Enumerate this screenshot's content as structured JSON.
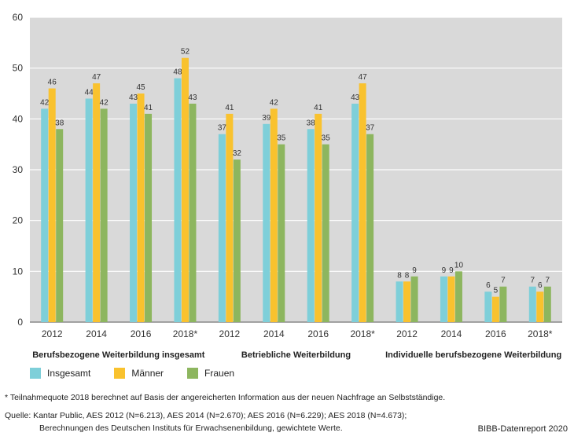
{
  "chart_data": {
    "type": "bar",
    "title": "",
    "xlabel": "",
    "ylabel": "",
    "ylim": [
      0,
      60
    ],
    "yticks": [
      0,
      10,
      20,
      30,
      40,
      50,
      60
    ],
    "grid": true,
    "legend_position": "bottom-left",
    "colors": {
      "plot_bg": "#d9d9d9",
      "Insgesamt": "#7ecfd9",
      "Männer": "#f9c22e",
      "Frauen": "#8db65f"
    },
    "groups": [
      {
        "name": "Berufsbezogene Weiterbildung insgesamt",
        "categories": [
          "2012",
          "2014",
          "2016",
          "2018*"
        ],
        "series": [
          {
            "name": "Insgesamt",
            "values": [
              42,
              44,
              43,
              48
            ]
          },
          {
            "name": "Männer",
            "values": [
              46,
              47,
              45,
              52
            ]
          },
          {
            "name": "Frauen",
            "values": [
              38,
              42,
              41,
              43
            ]
          }
        ]
      },
      {
        "name": "Betriebliche Weiterbildung",
        "categories": [
          "2012",
          "2014",
          "2016",
          "2018*"
        ],
        "series": [
          {
            "name": "Insgesamt",
            "values": [
              37,
              39,
              38,
              43
            ]
          },
          {
            "name": "Männer",
            "values": [
              41,
              42,
              41,
              47
            ]
          },
          {
            "name": "Frauen",
            "values": [
              32,
              35,
              35,
              37
            ]
          }
        ]
      },
      {
        "name": "Individuelle berufsbezogene Weiterbildung",
        "categories": [
          "2012",
          "2014",
          "2016",
          "2018*"
        ],
        "series": [
          {
            "name": "Insgesamt",
            "values": [
              8,
              9,
              6,
              7
            ]
          },
          {
            "name": "Männer",
            "values": [
              8,
              9,
              5,
              6
            ]
          },
          {
            "name": "Frauen",
            "values": [
              9,
              10,
              7,
              7
            ]
          }
        ]
      }
    ]
  },
  "legend": {
    "items": [
      {
        "label": "Insgesamt",
        "color": "#7ecfd9"
      },
      {
        "label": "Männer",
        "color": "#f9c22e"
      },
      {
        "label": "Frauen",
        "color": "#8db65f"
      }
    ]
  },
  "notes": {
    "footnote": "* Teilnahmequote 2018 berechnet auf Basis der angereicherten Information aus der neuen Nachfrage an Selbstständige.",
    "source_line1": "Quelle: Kantar Public, AES 2012 (N=6.213), AES 2014 (N=2.670); AES 2016 (N=6.229); AES 2018 (N=4.673);",
    "source_line2": "Berechnungen des Deutschen Instituts für Erwachsenenbildung, gewichtete Werte.",
    "publisher": "BIBB-Datenreport 2020"
  }
}
